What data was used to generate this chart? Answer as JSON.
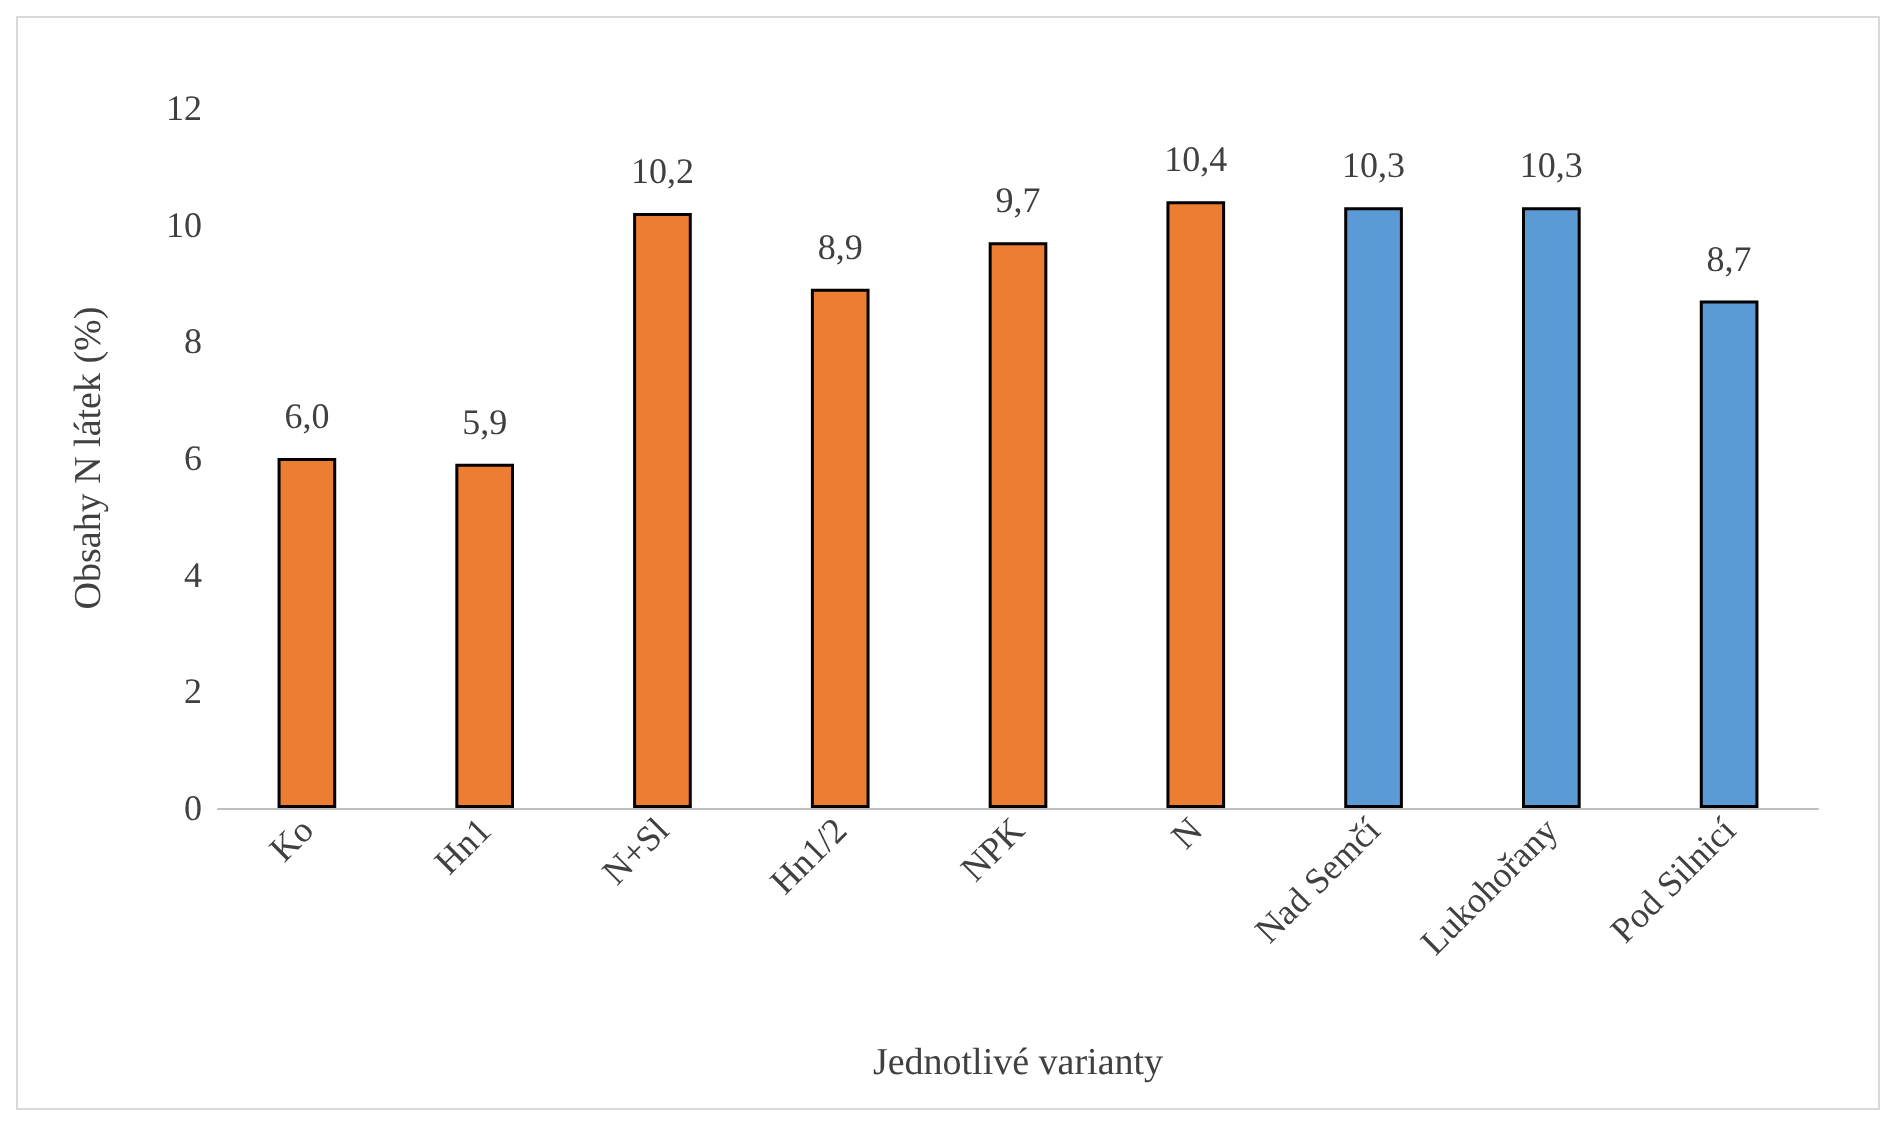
{
  "chart_data": {
    "type": "bar",
    "xlabel": "Jednotlivé varianty",
    "ylabel": "Obsahy N látek (%)",
    "categories": [
      "Ko",
      "Hn1",
      "N+Sl",
      "Hn1/2",
      "NPK",
      "N",
      "Nad Semčí",
      "Lukohořany",
      "Pod Silnicí"
    ],
    "values": [
      6.0,
      5.9,
      10.2,
      8.9,
      9.7,
      10.4,
      10.3,
      10.3,
      8.7
    ],
    "colors": [
      "#ed7d31",
      "#ed7d31",
      "#ed7d31",
      "#ed7d31",
      "#ed7d31",
      "#ed7d31",
      "#5b9bd5",
      "#5b9bd5",
      "#5b9bd5"
    ],
    "value_labels": [
      "6,0",
      "5,9",
      "10,2",
      "8,9",
      "9,7",
      "10,4",
      "10,3",
      "10,3",
      "8,7"
    ],
    "ylim": [
      0,
      12
    ],
    "yticks": [
      0,
      2,
      4,
      6,
      8,
      10,
      12
    ],
    "grid": false
  }
}
